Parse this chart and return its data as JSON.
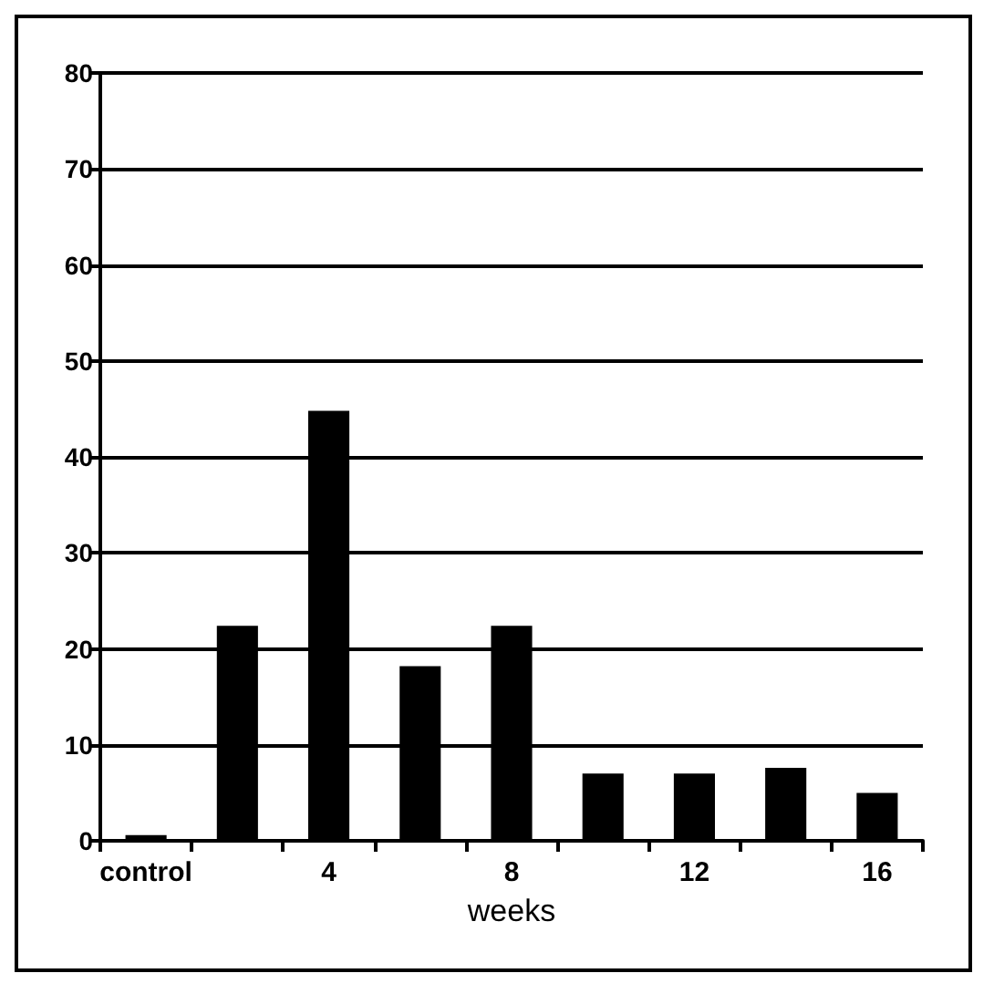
{
  "chart_data": {
    "type": "bar",
    "xlabel": "weeks",
    "categories": [
      "control",
      null,
      "4",
      null,
      "8",
      null,
      "12",
      null,
      "16"
    ],
    "values": [
      0.6,
      22.4,
      44.8,
      18.2,
      22.4,
      7,
      7,
      7.6,
      5
    ],
    "colors": [
      "#ffffff",
      "#000000",
      "#000000",
      "#000000",
      "#000000",
      "#000000",
      "#000000",
      "#000000",
      "#000000"
    ],
    "ylim": [
      0,
      80
    ],
    "yticks": [
      0,
      10,
      20,
      30,
      40,
      50,
      60,
      70,
      80
    ],
    "grid": "y"
  }
}
